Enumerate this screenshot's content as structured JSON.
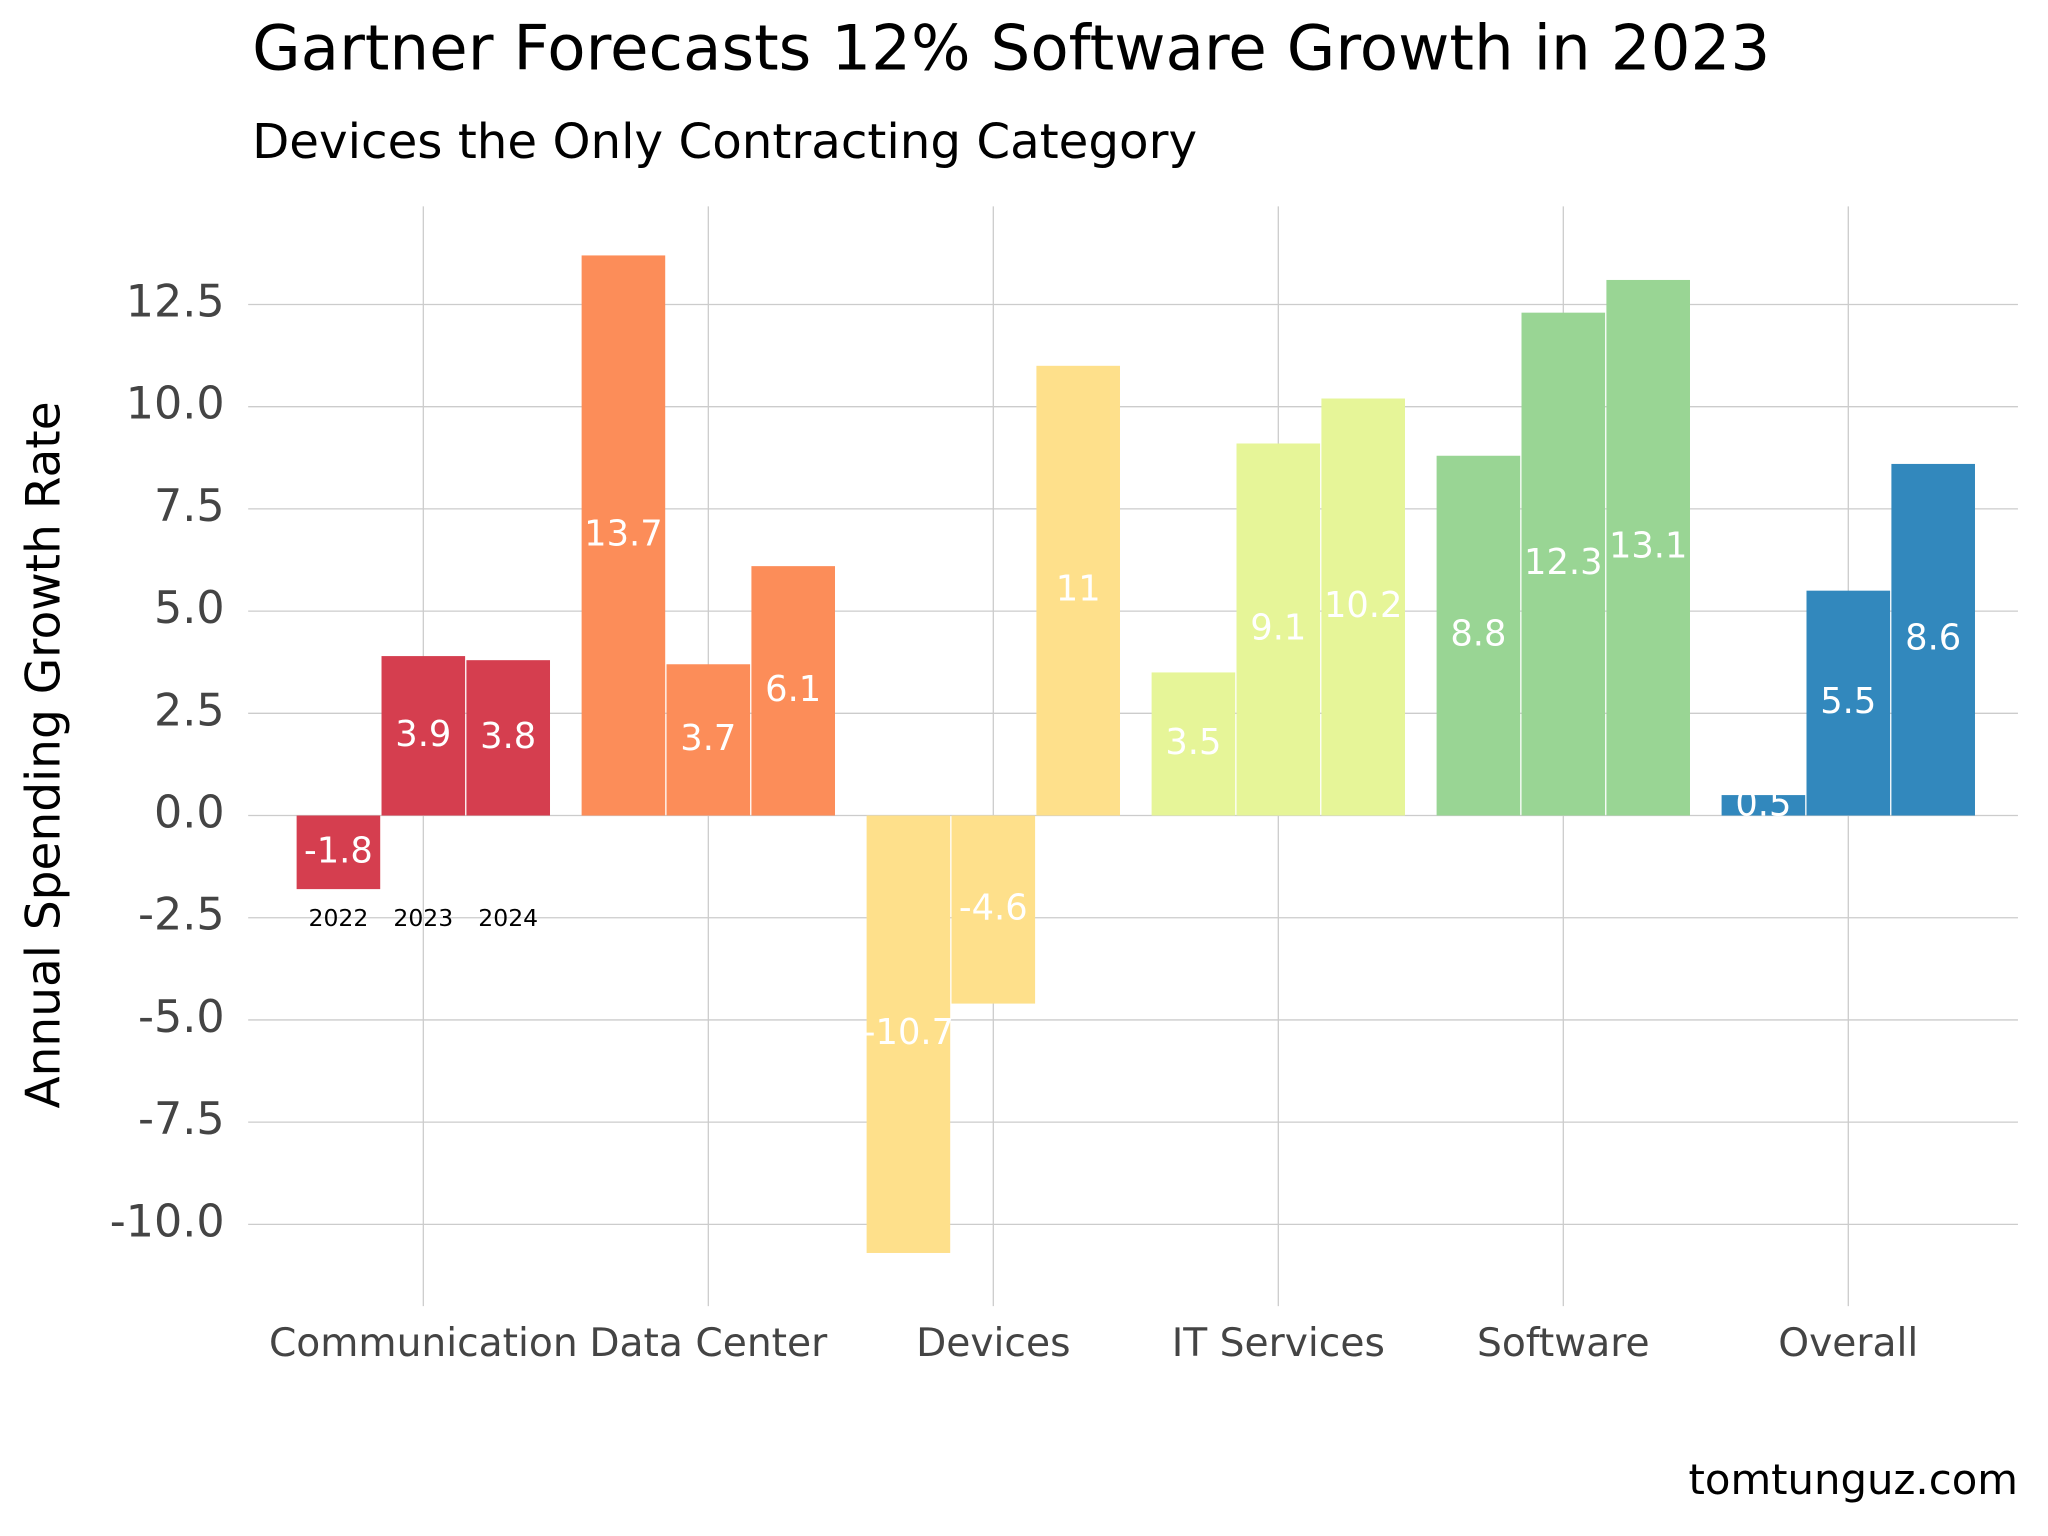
{
  "chart_data": {
    "type": "bar",
    "title": "Gartner Forecasts 12% Software Growth in 2023",
    "subtitle": "Devices the Only Contracting Category",
    "y_label": "Annual Spending Growth Rate",
    "source": "tomtunguz.com",
    "categories": [
      "Communication",
      "Data Center",
      "Devices",
      "IT Services",
      "Software",
      "Overall"
    ],
    "colors": [
      "#d53e4f",
      "#fc8d59",
      "#fee08b",
      "#e6f598",
      "#99d594",
      "#3288bd"
    ],
    "series": [
      {
        "name": "2022",
        "values": [
          -1.8,
          13.7,
          -10.7,
          3.5,
          8.8,
          0.5
        ]
      },
      {
        "name": "2023",
        "values": [
          3.9,
          3.7,
          -4.6,
          9.1,
          12.3,
          5.5
        ]
      },
      {
        "name": "2024",
        "values": [
          3.8,
          6.1,
          11,
          10.2,
          13.1,
          8.6
        ]
      }
    ],
    "ylim": [
      -12,
      14.9
    ],
    "yticks": [
      {
        "value": -10,
        "label": "-10.0"
      },
      -7.5,
      {
        "value": -5,
        "label": "-5.0"
      },
      -2.5,
      {
        "value": 0,
        "label": "0.0"
      },
      2.5,
      {
        "value": 5,
        "label": "5.0"
      },
      7.5,
      {
        "value": 10,
        "label": "10.0"
      },
      12.5
    ],
    "grid": true,
    "data_labels": true
  }
}
